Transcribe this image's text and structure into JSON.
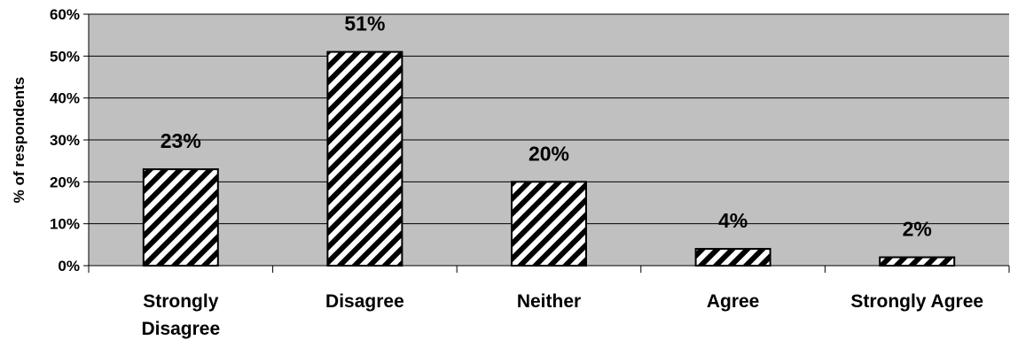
{
  "chart_data": {
    "type": "bar",
    "title": "",
    "xlabel": "",
    "ylabel": "% of respondents",
    "categories": [
      "Strongly Disagree",
      "Disagree",
      "Neither",
      "Agree",
      "Strongly Agree"
    ],
    "category_lines": [
      [
        "Strongly",
        "Disagree"
      ],
      [
        "Disagree"
      ],
      [
        "Neither"
      ],
      [
        "Agree"
      ],
      [
        "Strongly Agree"
      ]
    ],
    "values": [
      23,
      51,
      20,
      4,
      2
    ],
    "data_labels": [
      "23%",
      "51%",
      "20%",
      "4%",
      "2%"
    ],
    "ylim": [
      0,
      60
    ],
    "yticks": [
      0,
      10,
      20,
      30,
      40,
      50,
      60
    ],
    "ytick_labels": [
      "0%",
      "10%",
      "20%",
      "30%",
      "40%",
      "50%",
      "60%"
    ],
    "grid": true,
    "legend": "none",
    "colors": {
      "plot_background": "#c0c0c0",
      "bar_stripe_dark": "#000000",
      "bar_stripe_light": "#ffffff",
      "gridline": "#000000"
    }
  }
}
